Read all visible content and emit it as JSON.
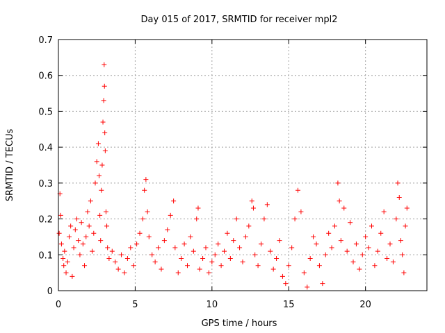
{
  "chart_data": {
    "type": "scatter",
    "title": "Day 015 of 2017, SRMTID for receiver mpl2",
    "xlabel": "GPS time / hours",
    "ylabel": "SRMTID / TECUs",
    "xlim": [
      0,
      24
    ],
    "ylim": [
      0,
      0.7
    ],
    "xticks": [
      0,
      5,
      10,
      15,
      20
    ],
    "yticks": [
      0,
      0.1,
      0.2,
      0.3,
      0.4,
      0.5,
      0.6,
      0.7
    ],
    "xtick_labels": [
      "0",
      "5",
      "10",
      "15",
      "20"
    ],
    "ytick_labels": [
      "0",
      "0.1",
      "0.2",
      "0.3",
      "0.4",
      "0.5",
      "0.6",
      "0.7"
    ],
    "grid": true,
    "marker": "+",
    "marker_color": "#ff0000",
    "series": [
      {
        "name": "SRMTID",
        "points": [
          [
            0.05,
            0.16
          ],
          [
            0.1,
            0.27
          ],
          [
            0.15,
            0.21
          ],
          [
            0.2,
            0.13
          ],
          [
            0.3,
            0.09
          ],
          [
            0.35,
            0.07
          ],
          [
            0.4,
            0.11
          ],
          [
            0.5,
            0.05
          ],
          [
            0.6,
            0.08
          ],
          [
            0.7,
            0.15
          ],
          [
            0.8,
            0.18
          ],
          [
            0.9,
            0.04
          ],
          [
            1.0,
            0.12
          ],
          [
            1.1,
            0.17
          ],
          [
            1.2,
            0.2
          ],
          [
            1.3,
            0.14
          ],
          [
            1.4,
            0.1
          ],
          [
            1.5,
            0.19
          ],
          [
            1.6,
            0.13
          ],
          [
            1.7,
            0.07
          ],
          [
            1.8,
            0.15
          ],
          [
            1.9,
            0.22
          ],
          [
            2.0,
            0.18
          ],
          [
            2.1,
            0.25
          ],
          [
            2.2,
            0.11
          ],
          [
            2.3,
            0.16
          ],
          [
            2.4,
            0.3
          ],
          [
            2.5,
            0.36
          ],
          [
            2.6,
            0.41
          ],
          [
            2.65,
            0.32
          ],
          [
            2.7,
            0.21
          ],
          [
            2.75,
            0.14
          ],
          [
            2.8,
            0.28
          ],
          [
            2.85,
            0.35
          ],
          [
            2.9,
            0.47
          ],
          [
            2.95,
            0.53
          ],
          [
            2.98,
            0.63
          ],
          [
            3.0,
            0.57
          ],
          [
            3.02,
            0.44
          ],
          [
            3.05,
            0.39
          ],
          [
            3.1,
            0.22
          ],
          [
            3.15,
            0.18
          ],
          [
            3.2,
            0.12
          ],
          [
            3.3,
            0.09
          ],
          [
            3.5,
            0.11
          ],
          [
            3.7,
            0.08
          ],
          [
            3.9,
            0.06
          ],
          [
            4.1,
            0.1
          ],
          [
            4.3,
            0.05
          ],
          [
            4.5,
            0.09
          ],
          [
            4.7,
            0.12
          ],
          [
            4.9,
            0.07
          ],
          [
            5.1,
            0.13
          ],
          [
            5.3,
            0.16
          ],
          [
            5.5,
            0.2
          ],
          [
            5.6,
            0.28
          ],
          [
            5.7,
            0.31
          ],
          [
            5.8,
            0.22
          ],
          [
            5.9,
            0.15
          ],
          [
            6.1,
            0.1
          ],
          [
            6.3,
            0.08
          ],
          [
            6.5,
            0.12
          ],
          [
            6.7,
            0.06
          ],
          [
            6.9,
            0.14
          ],
          [
            7.1,
            0.17
          ],
          [
            7.3,
            0.21
          ],
          [
            7.5,
            0.25
          ],
          [
            7.6,
            0.12
          ],
          [
            7.8,
            0.05
          ],
          [
            8.0,
            0.09
          ],
          [
            8.2,
            0.13
          ],
          [
            8.4,
            0.07
          ],
          [
            8.6,
            0.15
          ],
          [
            8.8,
            0.11
          ],
          [
            9.0,
            0.2
          ],
          [
            9.1,
            0.23
          ],
          [
            9.2,
            0.06
          ],
          [
            9.4,
            0.09
          ],
          [
            9.6,
            0.12
          ],
          [
            9.8,
            0.05
          ],
          [
            10.0,
            0.08
          ],
          [
            10.2,
            0.1
          ],
          [
            10.4,
            0.13
          ],
          [
            10.6,
            0.07
          ],
          [
            10.8,
            0.11
          ],
          [
            11.0,
            0.16
          ],
          [
            11.2,
            0.09
          ],
          [
            11.4,
            0.14
          ],
          [
            11.6,
            0.2
          ],
          [
            11.8,
            0.12
          ],
          [
            12.0,
            0.08
          ],
          [
            12.2,
            0.15
          ],
          [
            12.4,
            0.18
          ],
          [
            12.6,
            0.25
          ],
          [
            12.7,
            0.23
          ],
          [
            12.8,
            0.1
          ],
          [
            13.0,
            0.07
          ],
          [
            13.2,
            0.13
          ],
          [
            13.4,
            0.2
          ],
          [
            13.6,
            0.24
          ],
          [
            13.8,
            0.11
          ],
          [
            14.0,
            0.06
          ],
          [
            14.2,
            0.09
          ],
          [
            14.4,
            0.14
          ],
          [
            14.6,
            0.04
          ],
          [
            14.8,
            0.02
          ],
          [
            15.0,
            0.07
          ],
          [
            15.2,
            0.12
          ],
          [
            15.4,
            0.2
          ],
          [
            15.6,
            0.28
          ],
          [
            15.8,
            0.22
          ],
          [
            16.0,
            0.05
          ],
          [
            16.2,
            0.01
          ],
          [
            16.4,
            0.09
          ],
          [
            16.6,
            0.15
          ],
          [
            16.8,
            0.13
          ],
          [
            17.0,
            0.07
          ],
          [
            17.2,
            0.02
          ],
          [
            17.4,
            0.1
          ],
          [
            17.6,
            0.16
          ],
          [
            17.8,
            0.12
          ],
          [
            18.0,
            0.18
          ],
          [
            18.2,
            0.3
          ],
          [
            18.3,
            0.25
          ],
          [
            18.4,
            0.14
          ],
          [
            18.6,
            0.23
          ],
          [
            18.8,
            0.11
          ],
          [
            19.0,
            0.19
          ],
          [
            19.2,
            0.08
          ],
          [
            19.4,
            0.13
          ],
          [
            19.6,
            0.06
          ],
          [
            19.8,
            0.1
          ],
          [
            20.0,
            0.15
          ],
          [
            20.2,
            0.12
          ],
          [
            20.4,
            0.18
          ],
          [
            20.6,
            0.07
          ],
          [
            20.8,
            0.11
          ],
          [
            21.0,
            0.16
          ],
          [
            21.2,
            0.22
          ],
          [
            21.4,
            0.09
          ],
          [
            21.6,
            0.13
          ],
          [
            21.8,
            0.08
          ],
          [
            22.0,
            0.2
          ],
          [
            22.1,
            0.3
          ],
          [
            22.2,
            0.26
          ],
          [
            22.3,
            0.14
          ],
          [
            22.4,
            0.1
          ],
          [
            22.5,
            0.05
          ],
          [
            22.6,
            0.18
          ],
          [
            22.7,
            0.23
          ]
        ]
      }
    ]
  }
}
